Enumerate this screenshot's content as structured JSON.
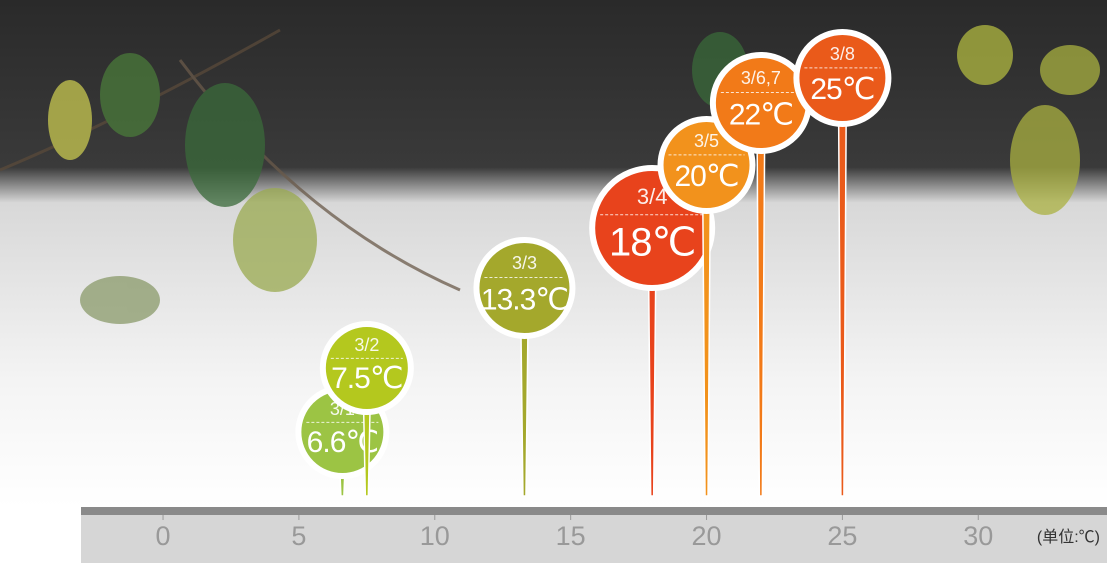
{
  "chart_data": {
    "type": "pin",
    "categories": [
      "3/1",
      "3/2",
      "3/3",
      "3/4",
      "3/5",
      "3/6,7",
      "3/8"
    ],
    "values": [
      6.6,
      7.5,
      13.3,
      18,
      20,
      22,
      25
    ],
    "value_labels": [
      "6.6℃",
      "7.5℃",
      "13.3℃",
      "18℃",
      "20℃",
      "22℃",
      "25℃"
    ],
    "colors": [
      "#9cc444",
      "#b4c81e",
      "#a4a82c",
      "#e8431c",
      "#f2921c",
      "#f27a18",
      "#ea5a1a"
    ],
    "xlim": [
      -3,
      34.7
    ],
    "xticks": [
      0,
      5,
      10,
      15,
      20,
      25,
      30
    ],
    "x_label": "(单位:℃)"
  }
}
